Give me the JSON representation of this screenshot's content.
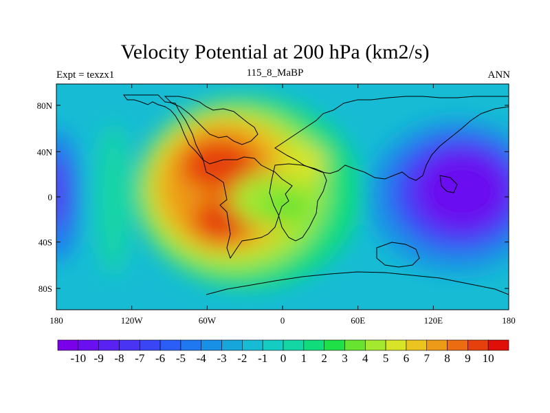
{
  "title": "Velocity Potential at 200 hPa (km2/s)",
  "left_string": "Expt = texzx1",
  "center_string": "115_8_MaBP",
  "right_string": "ANN",
  "chart_data": {
    "type": "contour-map",
    "variable": "Velocity Potential",
    "level": "200 hPa",
    "units": "km2/s",
    "x_ticks": [
      "180",
      "120W",
      "60W",
      "0",
      "60E",
      "120E",
      "180"
    ],
    "y_ticks": [
      "80N",
      "40N",
      "0",
      "40S",
      "80S"
    ],
    "lon_range": [
      -180,
      180
    ],
    "lat_range": [
      -90,
      90
    ],
    "colorbar": {
      "levels": [
        -10,
        -9,
        -8,
        -7,
        -6,
        -5,
        -4,
        -3,
        -2,
        -1,
        0,
        1,
        2,
        3,
        4,
        5,
        6,
        7,
        8,
        9,
        10
      ],
      "labels": [
        "-10",
        "-9",
        "-8",
        "-7",
        "-6",
        "-5",
        "-4",
        "-3",
        "-2",
        "-1",
        "0",
        "1",
        "2",
        "3",
        "4",
        "5",
        "6",
        "7",
        "8",
        "9",
        "10"
      ],
      "colors": [
        "#7a00ea",
        "#6a10f0",
        "#5a22f2",
        "#4a34f4",
        "#3a46f6",
        "#2a5ef6",
        "#1f78f0",
        "#1890e6",
        "#17a6dc",
        "#17bcd4",
        "#15ccc2",
        "#13d6a4",
        "#10dc7c",
        "#20e048",
        "#68e430",
        "#a4e830",
        "#d8e428",
        "#ecc420",
        "#ec9a18",
        "#ec6c12",
        "#e6400c",
        "#e01008"
      ]
    },
    "features": [
      {
        "name": "positive maximum",
        "value": 10,
        "lon": -40,
        "lat": 10
      },
      {
        "name": "negative minimum",
        "value": -10,
        "lon": 150,
        "lat": 0
      },
      {
        "name": "secondary negative",
        "value": -7,
        "lon": -175,
        "lat": 5
      }
    ]
  }
}
